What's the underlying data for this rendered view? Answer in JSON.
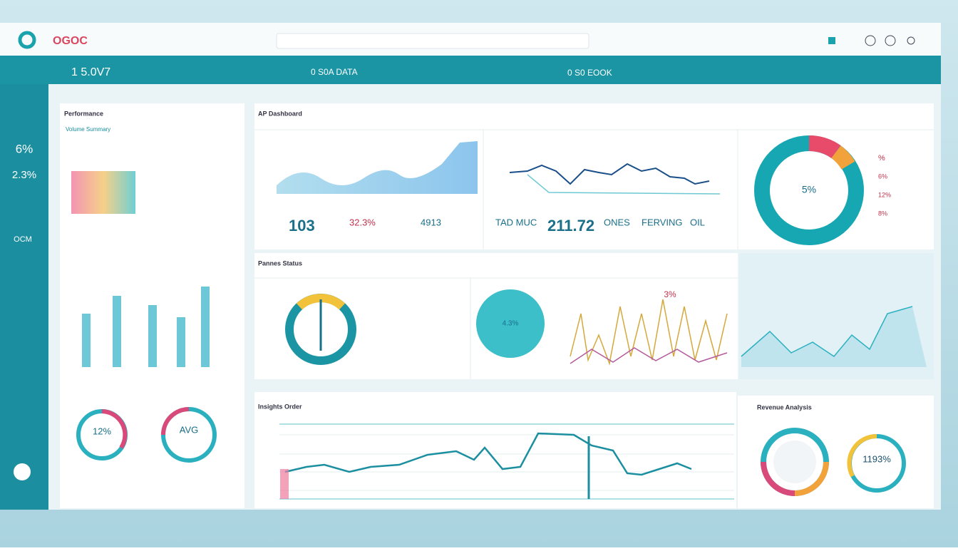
{
  "header": {
    "logo": "OGOC"
  },
  "banner": {
    "items": [
      "1 5.0V7",
      "0 S0A DATA",
      "0 S0 EOOK"
    ]
  },
  "sidebar": {
    "stats": [
      "6%",
      "2.3%",
      "OCM"
    ]
  },
  "panels": {
    "left": {
      "title": "Performance",
      "subtitle": "Volume Summary",
      "donut_labels": [
        "12%",
        "AVG"
      ]
    },
    "top": {
      "title": "AP Dashboard",
      "kpis": [
        "103",
        "32.3%",
        "4913",
        "TAD MUC",
        "211.72",
        "ONES",
        "FERVING",
        "OIL"
      ],
      "donut_label": "5%",
      "legend": [
        "%",
        "6%",
        "12%",
        "8%"
      ]
    },
    "middle": {
      "title": "Pannes Status",
      "pie_label": "4.3%",
      "peak_label": "3%"
    },
    "bottom": {
      "title": "Insights Order",
      "right_title": "Revenue Analysis",
      "right_label": "1193%"
    }
  }
}
